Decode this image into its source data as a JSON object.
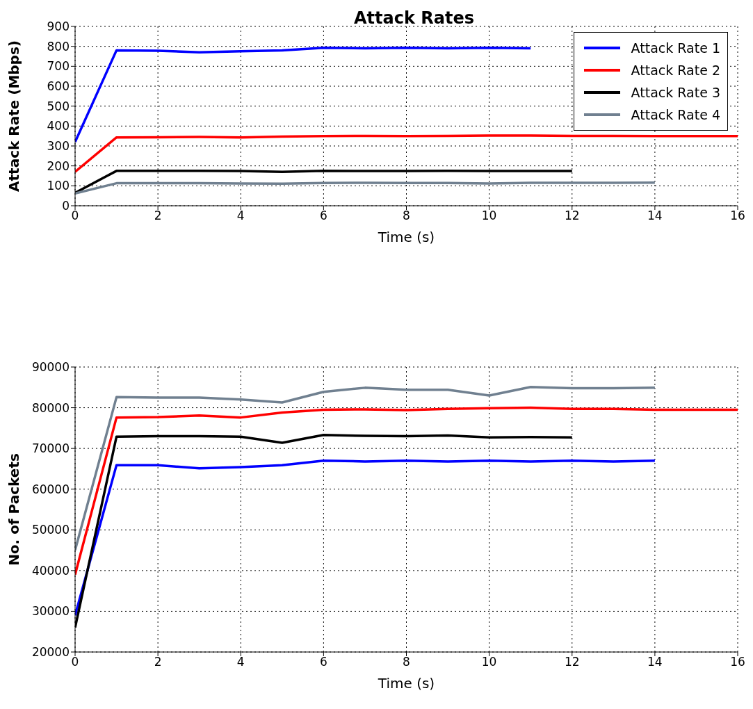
{
  "chart_data": [
    {
      "type": "line",
      "title": "Attack Rates",
      "xlabel": "Time (s)",
      "ylabel": "Attack Rate (Mbps)",
      "xlim": [
        0,
        16
      ],
      "xticks": [
        0,
        2,
        4,
        6,
        8,
        10,
        12,
        14,
        16
      ],
      "ylim": [
        0,
        900
      ],
      "yticks": [
        0,
        100,
        200,
        300,
        400,
        500,
        600,
        700,
        800,
        900
      ],
      "grid": true,
      "legend": "top right",
      "line_style": "solid",
      "marker": "none",
      "series": [
        {
          "name": "Attack Rate 1",
          "color": "#0000ff",
          "x": [
            0,
            1,
            2,
            3,
            4,
            5,
            6,
            7,
            8,
            9,
            10,
            11
          ],
          "values": [
            320,
            780,
            778,
            770,
            775,
            780,
            793,
            790,
            793,
            790,
            793,
            790
          ]
        },
        {
          "name": "Attack Rate 2",
          "color": "#ff0000",
          "x": [
            0,
            1,
            2,
            3,
            4,
            5,
            6,
            7,
            8,
            9,
            10,
            11,
            12,
            13,
            14,
            15,
            16
          ],
          "values": [
            170,
            343,
            344,
            345,
            343,
            347,
            350,
            351,
            350,
            351,
            352,
            352,
            351,
            351,
            350,
            350,
            350
          ]
        },
        {
          "name": "Attack Rate 3",
          "color": "#000000",
          "x": [
            0,
            1,
            2,
            3,
            4,
            5,
            6,
            7,
            8,
            9,
            10,
            11,
            12
          ],
          "values": [
            65,
            175,
            175,
            175,
            174,
            170,
            175,
            174,
            174,
            175,
            174,
            174,
            174
          ]
        },
        {
          "name": "Attack Rate 4",
          "color": "#708090",
          "x": [
            0,
            1,
            2,
            3,
            4,
            5,
            6,
            7,
            8,
            9,
            10,
            11,
            12,
            13,
            14
          ],
          "values": [
            62,
            113,
            113,
            113,
            112,
            111,
            114,
            115,
            114,
            114,
            112,
            115,
            115,
            115,
            116
          ]
        }
      ]
    },
    {
      "type": "line",
      "xlabel": "Time (s)",
      "ylabel": "No. of Packets",
      "xlim": [
        0,
        16
      ],
      "xticks": [
        0,
        2,
        4,
        6,
        8,
        10,
        12,
        14,
        16
      ],
      "ylim": [
        20000,
        90000
      ],
      "yticks": [
        20000,
        30000,
        40000,
        50000,
        60000,
        70000,
        80000,
        90000
      ],
      "grid": true,
      "line_style": "solid",
      "marker": "none",
      "series": [
        {
          "color": "#0000ff",
          "x": [
            0,
            1,
            2,
            3,
            4,
            5,
            6,
            7,
            8,
            9,
            10,
            11,
            12,
            13,
            14
          ],
          "values": [
            29000,
            65900,
            65900,
            65100,
            65400,
            65900,
            67000,
            66800,
            67000,
            66800,
            67000,
            66800,
            67000,
            66800,
            67000
          ]
        },
        {
          "color": "#ff0000",
          "x": [
            0,
            1,
            2,
            3,
            4,
            5,
            6,
            7,
            8,
            9,
            10,
            11,
            12,
            13,
            14,
            15,
            16
          ],
          "values": [
            39000,
            77600,
            77700,
            78100,
            77600,
            78800,
            79500,
            79600,
            79400,
            79700,
            79900,
            80000,
            79700,
            79700,
            79500,
            79500,
            79500
          ]
        },
        {
          "color": "#000000",
          "x": [
            0,
            1,
            2,
            3,
            4,
            5,
            6,
            7,
            8,
            9,
            10,
            11,
            12
          ],
          "values": [
            26000,
            72900,
            73000,
            73000,
            72900,
            71400,
            73300,
            73100,
            73000,
            73200,
            72700,
            72800,
            72700
          ]
        },
        {
          "color": "#708090",
          "x": [
            0,
            1,
            2,
            3,
            4,
            5,
            6,
            7,
            8,
            9,
            10,
            11,
            12,
            13,
            14
          ],
          "values": [
            45000,
            82600,
            82500,
            82500,
            82000,
            81300,
            83900,
            84900,
            84400,
            84400,
            83000,
            85100,
            84800,
            84800,
            84900
          ]
        }
      ]
    }
  ]
}
